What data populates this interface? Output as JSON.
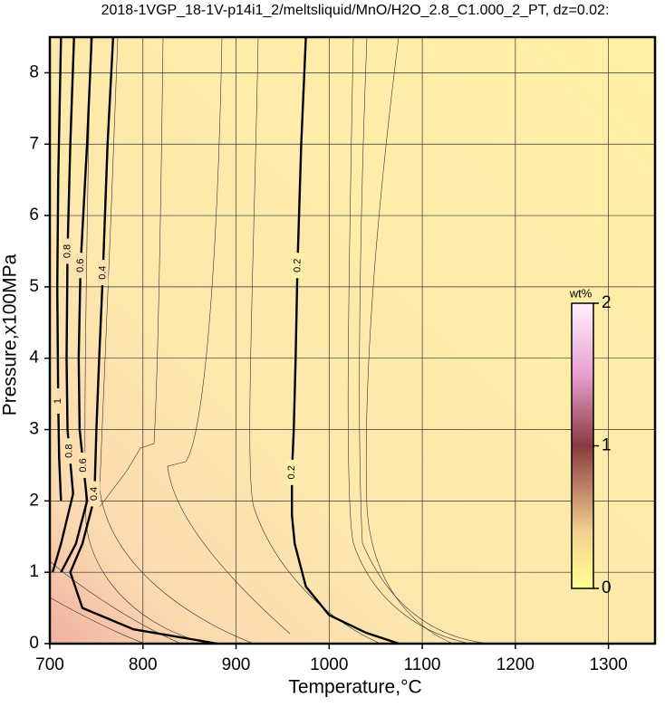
{
  "chart_data": {
    "type": "contour",
    "title": "2018-1VGP_18-1V-p14i1_2/meltsliquid/MnO/H2O_2.8_C1.000_2_PT, dz=0.02:",
    "x_label": "Temperature,°C",
    "y_label": "Pressure,x100MPa",
    "xlim": [
      700,
      1350
    ],
    "xticks": [
      700,
      800,
      900,
      1000,
      1100,
      1200,
      1300
    ],
    "ylim": [
      0,
      8.5
    ],
    "yticks": [
      0,
      1,
      2,
      3,
      4,
      5,
      6,
      7,
      8
    ],
    "grid": true,
    "colorbar": {
      "label": "wt%",
      "lim": [
        0,
        2
      ],
      "ticks": [
        0,
        1,
        2
      ]
    },
    "contours": [
      {
        "level": "0.2",
        "x": [
          975,
          970,
          966,
          964,
          962,
          960,
          960,
          963,
          975,
          1000,
          1040,
          1075
        ],
        "y": [
          8.5,
          7,
          5.3,
          4,
          3,
          2.4,
          1.8,
          1.4,
          0.8,
          0.4,
          0.15,
          0
        ]
      },
      {
        "level": "0.4",
        "x": [
          768,
          762,
          757,
          753,
          750,
          748,
          745,
          735,
          722,
          735,
          790,
          880
        ],
        "y": [
          8.5,
          7,
          5.2,
          4,
          3,
          2.1,
          1.9,
          1.4,
          1.0,
          0.5,
          0.2,
          0
        ]
      },
      {
        "level": "0.6",
        "x": [
          745,
          740,
          733,
          731,
          732,
          736,
          740,
          728,
          712
        ],
        "y": [
          8.5,
          7,
          5.3,
          4,
          3,
          2.5,
          2.0,
          1.4,
          1.0
        ]
      },
      {
        "level": "0.8",
        "x": [
          726,
          722,
          719,
          718,
          719,
          721,
          725,
          712,
          703
        ],
        "y": [
          8.5,
          7,
          5.5,
          4,
          3,
          2.7,
          2.1,
          1.4,
          1.0
        ]
      },
      {
        "level": "1",
        "x": [
          712,
          709,
          708,
          709,
          710,
          712
        ],
        "y": [
          8.5,
          6.5,
          5,
          3.4,
          2.6,
          2.0
        ]
      }
    ]
  }
}
